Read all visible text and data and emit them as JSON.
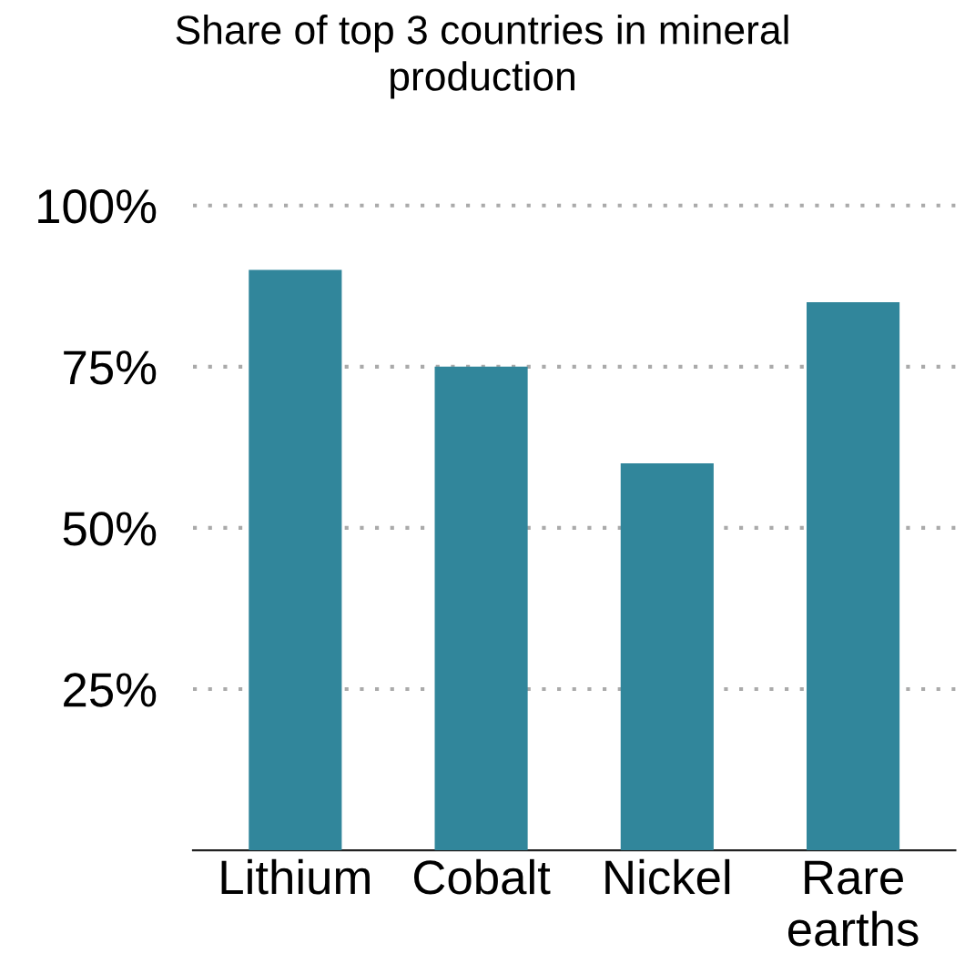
{
  "chart_data": {
    "type": "bar",
    "title": "Share of top 3 countries in mineral\nproduction",
    "categories": [
      "Lithium",
      "Cobalt",
      "Nickel",
      "Rare\nearths"
    ],
    "values": [
      90,
      75,
      60,
      85
    ],
    "color": "#31869b",
    "ylim": [
      0,
      100
    ],
    "yticks": [
      {
        "value": 25,
        "label": "25%"
      },
      {
        "value": 50,
        "label": "50%"
      },
      {
        "value": 75,
        "label": "75%"
      },
      {
        "value": 100,
        "label": "100%"
      }
    ],
    "grid": "y",
    "legend": false
  }
}
